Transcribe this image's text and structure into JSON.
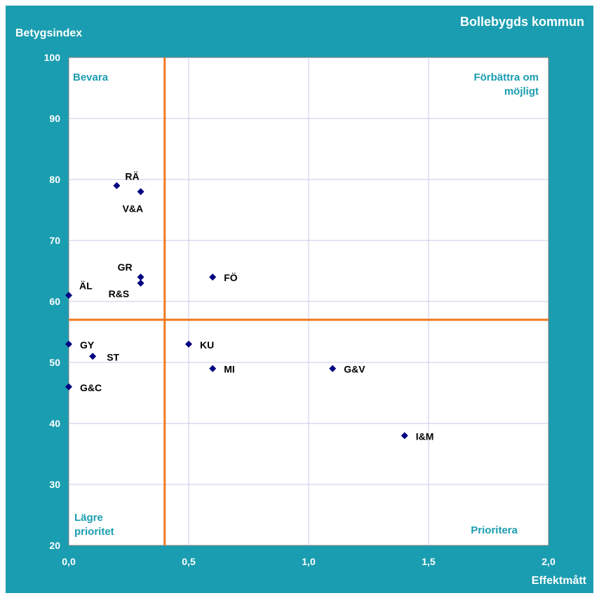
{
  "chart_data": {
    "type": "scatter",
    "title": "Bollebygds kommun",
    "xlabel": "Effektmått",
    "ylabel": "Betygsindex",
    "xlim": [
      0,
      2
    ],
    "ylim": [
      20,
      100
    ],
    "x_ticks": [
      "0,0",
      "0,5",
      "1,0",
      "1,5",
      "2,0"
    ],
    "y_ticks": [
      "20",
      "30",
      "40",
      "50",
      "60",
      "70",
      "80",
      "90",
      "100"
    ],
    "grid": true,
    "reference_lines": {
      "x": 0.4,
      "y": 57,
      "color": "#f07820"
    },
    "quadrants": {
      "top_left": "Bevara",
      "top_right": [
        "Förbättra om",
        "möjligt"
      ],
      "bottom_left": [
        "Lägre",
        "prioritet"
      ],
      "bottom_right": "Prioritera"
    },
    "marker_color": "#000080",
    "points": [
      {
        "label": "RÄ",
        "x": 0.2,
        "y": 79
      },
      {
        "label": "V&A",
        "x": 0.3,
        "y": 78
      },
      {
        "label": "GR",
        "x": 0.3,
        "y": 64
      },
      {
        "label": "R&S",
        "x": 0.3,
        "y": 63
      },
      {
        "label": "ÄL",
        "x": 0.0,
        "y": 61
      },
      {
        "label": "FÖ",
        "x": 0.6,
        "y": 64
      },
      {
        "label": "GY",
        "x": 0.0,
        "y": 53
      },
      {
        "label": "KU",
        "x": 0.5,
        "y": 53
      },
      {
        "label": "ST",
        "x": 0.1,
        "y": 51
      },
      {
        "label": "MI",
        "x": 0.6,
        "y": 49
      },
      {
        "label": "G&V",
        "x": 1.1,
        "y": 49
      },
      {
        "label": "G&C",
        "x": 0.0,
        "y": 46
      },
      {
        "label": "I&M",
        "x": 1.4,
        "y": 38
      }
    ]
  }
}
